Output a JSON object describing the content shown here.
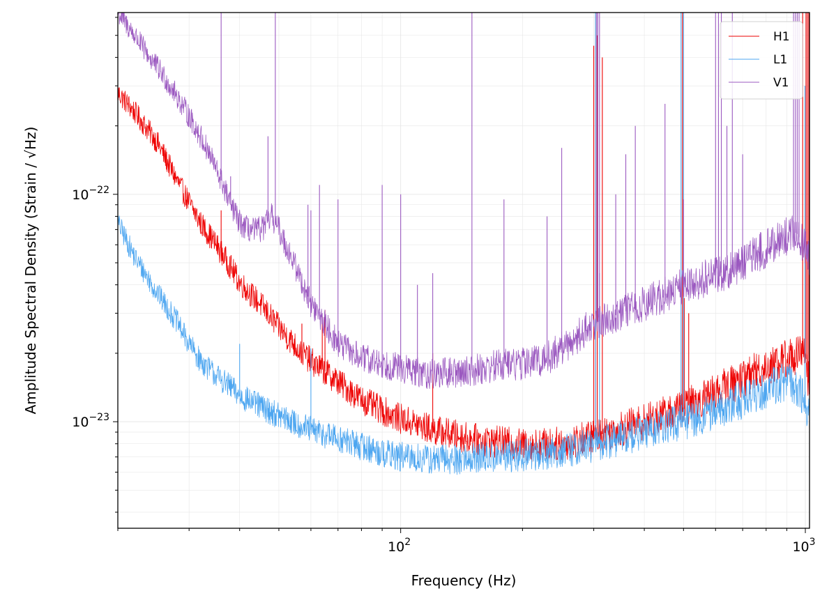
{
  "chart_data": {
    "type": "line",
    "title": "",
    "xlabel": "Frequency (Hz)",
    "ylabel": "Amplitude Spectral Density (Strain / √Hz)",
    "xscale": "log",
    "yscale": "log",
    "xlim": [
      20,
      1024
    ],
    "ylim": [
      3.4e-24,
      6.3e-22
    ],
    "grid": true,
    "legend_position": "top-right",
    "x_ticks": [
      {
        "value": 100,
        "base": "10",
        "exponent": "2"
      },
      {
        "value": 1000,
        "base": "10",
        "exponent": "3"
      }
    ],
    "y_ticks": [
      {
        "value": 1e-23,
        "base": "10",
        "exponent": "−23"
      },
      {
        "value": 1e-22,
        "base": "10",
        "exponent": "−22"
      }
    ],
    "series": [
      {
        "name": "H1",
        "color": "#ee0000",
        "x": [
          20,
          22,
          25,
          28,
          30,
          32,
          35,
          38,
          40,
          45,
          50,
          55,
          60,
          70,
          80,
          90,
          100,
          120,
          150,
          200,
          250,
          300,
          400,
          500,
          600,
          700,
          800,
          900,
          1000,
          1024
        ],
        "y": [
          2.8e-22,
          2.3e-22,
          1.7e-22,
          1.15e-22,
          9.2e-23,
          7.5e-23,
          6e-23,
          4.8e-23,
          4.1e-23,
          3.3e-23,
          2.6e-23,
          2.15e-23,
          1.85e-23,
          1.5e-23,
          1.25e-23,
          1.12e-23,
          1.03e-23,
          9.2e-24,
          8.4e-24,
          7.9e-24,
          8e-24,
          8.6e-24,
          1e-23,
          1.15e-23,
          1.35e-23,
          1.55e-23,
          1.75e-23,
          1.9e-23,
          2e-23,
          1.4e-23
        ],
        "lines": [
          {
            "x": 36,
            "y": 8.5e-23
          },
          {
            "x": 54,
            "y": 2.4e-23
          },
          {
            "x": 57,
            "y": 2.7e-23
          },
          {
            "x": 64,
            "y": 2.9e-23
          },
          {
            "x": 65,
            "y": 3.1e-23
          },
          {
            "x": 120,
            "y": 2e-23
          },
          {
            "x": 300,
            "y": 4.5e-22
          },
          {
            "x": 303,
            "y": 6.3e-22
          },
          {
            "x": 306,
            "y": 5e-22
          },
          {
            "x": 315,
            "y": 4e-22
          },
          {
            "x": 497,
            "y": 6.3e-22
          },
          {
            "x": 502,
            "y": 3.5e-23
          },
          {
            "x": 515,
            "y": 3e-23
          },
          {
            "x": 985,
            "y": 6.3e-22
          },
          {
            "x": 1004,
            "y": 6.3e-22
          },
          {
            "x": 1012,
            "y": 6.3e-22
          },
          {
            "x": 1020,
            "y": 6.3e-22
          }
        ]
      },
      {
        "name": "L1",
        "color": "#4da6f0",
        "x": [
          20,
          22,
          25,
          28,
          30,
          32,
          35,
          38,
          40,
          45,
          50,
          55,
          60,
          70,
          80,
          90,
          100,
          120,
          150,
          200,
          250,
          300,
          400,
          500,
          600,
          700,
          800,
          900,
          1000,
          1024
        ],
        "y": [
          7.5e-23,
          5.3e-23,
          3.7e-23,
          2.75e-23,
          2.2e-23,
          1.85e-23,
          1.6e-23,
          1.42e-23,
          1.3e-23,
          1.17e-23,
          1.06e-23,
          9.8e-24,
          9.2e-24,
          8.4e-24,
          7.8e-24,
          7.3e-24,
          7e-24,
          6.8e-24,
          6.9e-24,
          7.1e-24,
          7.4e-24,
          7.9e-24,
          9e-24,
          1e-23,
          1.12e-23,
          1.25e-23,
          1.4e-23,
          1.52e-23,
          1.25e-23,
          1.05e-23
        ],
        "lines": [
          {
            "x": 40,
            "y": 2.2e-23
          },
          {
            "x": 60,
            "y": 2.1e-23
          },
          {
            "x": 303,
            "y": 6.3e-22
          },
          {
            "x": 310,
            "y": 4.5e-23
          },
          {
            "x": 493,
            "y": 6.3e-22
          },
          {
            "x": 500,
            "y": 6.3e-22
          },
          {
            "x": 998,
            "y": 3e-22
          }
        ]
      },
      {
        "name": "V1",
        "color": "#9b59c0",
        "x": [
          20,
          22,
          24,
          26,
          28,
          30,
          32,
          34,
          36,
          38,
          40,
          42,
          44,
          46,
          48,
          50,
          55,
          60,
          65,
          70,
          80,
          90,
          100,
          110,
          120,
          140,
          160,
          180,
          200,
          230,
          260,
          300,
          350,
          400,
          450,
          500,
          600,
          700,
          800,
          900,
          950,
          1000,
          1024
        ],
        "y": [
          6.3e-22,
          5e-22,
          4e-22,
          3.3e-22,
          2.7e-22,
          2.2e-22,
          1.8e-22,
          1.45e-22,
          1.15e-22,
          9e-23,
          7.5e-23,
          7e-23,
          6.9e-23,
          7.2e-23,
          8e-23,
          7e-23,
          4.8e-23,
          3.3e-23,
          2.7e-23,
          2.2e-23,
          1.9e-23,
          1.8e-23,
          1.72e-23,
          1.65e-23,
          1.62e-23,
          1.65e-23,
          1.72e-23,
          1.8e-23,
          1.8e-23,
          1.9e-23,
          2.2e-23,
          2.7e-23,
          3e-23,
          3.3e-23,
          3.6e-23,
          4e-23,
          4.4e-23,
          5e-23,
          5.8e-23,
          6.5e-23,
          6.8e-23,
          5.8e-23,
          5e-23
        ],
        "lines": [
          {
            "x": 36,
            "y": 6.3e-22
          },
          {
            "x": 38,
            "y": 1.2e-22
          },
          {
            "x": 47,
            "y": 1.8e-22
          },
          {
            "x": 49,
            "y": 6.3e-22
          },
          {
            "x": 59,
            "y": 9e-23
          },
          {
            "x": 60,
            "y": 8.5e-23
          },
          {
            "x": 63,
            "y": 1.1e-22
          },
          {
            "x": 70,
            "y": 9.5e-23
          },
          {
            "x": 90,
            "y": 1.1e-22
          },
          {
            "x": 100,
            "y": 1e-22
          },
          {
            "x": 110,
            "y": 4e-23
          },
          {
            "x": 120,
            "y": 4.5e-23
          },
          {
            "x": 150,
            "y": 6.3e-22
          },
          {
            "x": 180,
            "y": 9.5e-23
          },
          {
            "x": 230,
            "y": 8e-23
          },
          {
            "x": 250,
            "y": 1.6e-22
          },
          {
            "x": 305,
            "y": 6.3e-22
          },
          {
            "x": 307,
            "y": 6.3e-22
          },
          {
            "x": 310,
            "y": 6.3e-22
          },
          {
            "x": 340,
            "y": 1e-22
          },
          {
            "x": 360,
            "y": 1.5e-22
          },
          {
            "x": 380,
            "y": 2e-22
          },
          {
            "x": 450,
            "y": 2.5e-22
          },
          {
            "x": 500,
            "y": 9.5e-23
          },
          {
            "x": 600,
            "y": 6.3e-22
          },
          {
            "x": 610,
            "y": 6.3e-22
          },
          {
            "x": 620,
            "y": 6.3e-22
          },
          {
            "x": 640,
            "y": 2e-22
          },
          {
            "x": 660,
            "y": 6.3e-22
          },
          {
            "x": 700,
            "y": 1.5e-22
          },
          {
            "x": 935,
            "y": 6.3e-22
          },
          {
            "x": 945,
            "y": 6.3e-22
          },
          {
            "x": 955,
            "y": 6.3e-22
          },
          {
            "x": 965,
            "y": 6.3e-22
          }
        ]
      }
    ]
  }
}
